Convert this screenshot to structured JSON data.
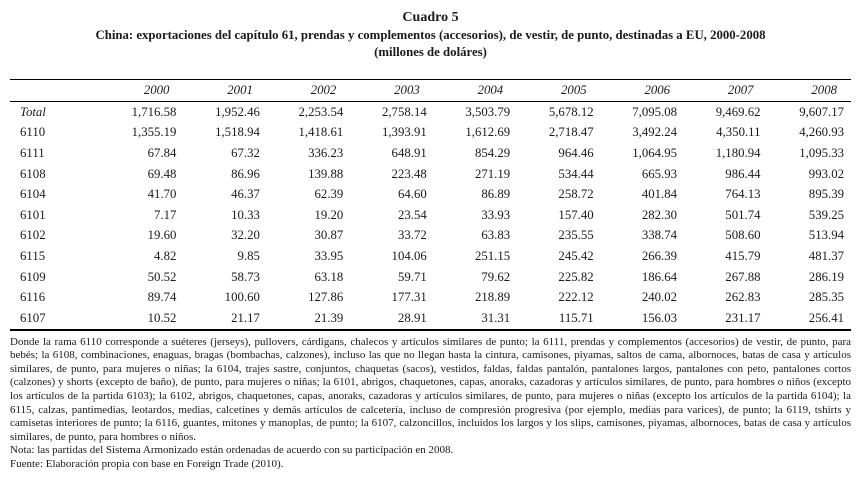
{
  "title": {
    "label": "Cuadro 5",
    "subtitle": "China: exportaciones del capítulo 61, prendas y complementos (accesorios), de vestir, de punto, destinadas a EU, 2000-2008",
    "units": "(millones de doláres)"
  },
  "table": {
    "columns": [
      "2000",
      "2001",
      "2002",
      "2003",
      "2004",
      "2005",
      "2006",
      "2007",
      "2008"
    ],
    "rows": [
      {
        "label": "Total",
        "italic": true,
        "values": [
          "1,716.58",
          "1,952.46",
          "2,253.54",
          "2,758.14",
          "3,503.79",
          "5,678.12",
          "7,095.08",
          "9,469.62",
          "9,607.17"
        ]
      },
      {
        "label": "6110",
        "italic": false,
        "values": [
          "1,355.19",
          "1,518.94",
          "1,418.61",
          "1,393.91",
          "1,612.69",
          "2,718.47",
          "3,492.24",
          "4,350.11",
          "4,260.93"
        ]
      },
      {
        "label": "6111",
        "italic": false,
        "values": [
          "67.84",
          "67.32",
          "336.23",
          "648.91",
          "854.29",
          "964.46",
          "1,064.95",
          "1,180.94",
          "1,095.33"
        ]
      },
      {
        "label": "6108",
        "italic": false,
        "values": [
          "69.48",
          "86.96",
          "139.88",
          "223.48",
          "271.19",
          "534.44",
          "665.93",
          "986.44",
          "993.02"
        ]
      },
      {
        "label": "6104",
        "italic": false,
        "values": [
          "41.70",
          "46.37",
          "62.39",
          "64.60",
          "86.89",
          "258.72",
          "401.84",
          "764.13",
          "895.39"
        ]
      },
      {
        "label": "6101",
        "italic": false,
        "values": [
          "7.17",
          "10.33",
          "19.20",
          "23.54",
          "33.93",
          "157.40",
          "282.30",
          "501.74",
          "539.25"
        ]
      },
      {
        "label": "6102",
        "italic": false,
        "values": [
          "19.60",
          "32.20",
          "30.87",
          "33.72",
          "63.83",
          "235.55",
          "338.74",
          "508.60",
          "513.94"
        ]
      },
      {
        "label": "6115",
        "italic": false,
        "values": [
          "4.82",
          "9.85",
          "33.95",
          "104.06",
          "251.15",
          "245.42",
          "266.39",
          "415.79",
          "481.37"
        ]
      },
      {
        "label": "6109",
        "italic": false,
        "values": [
          "50.52",
          "58.73",
          "63.18",
          "59.71",
          "79.62",
          "225.82",
          "186.64",
          "267.88",
          "286.19"
        ]
      },
      {
        "label": "6116",
        "italic": false,
        "values": [
          "89.74",
          "100.60",
          "127.86",
          "177.31",
          "218.89",
          "222.12",
          "240.02",
          "262.83",
          "285.35"
        ]
      },
      {
        "label": "6107",
        "italic": false,
        "values": [
          "10.52",
          "21.17",
          "21.39",
          "28.91",
          "31.31",
          "115.71",
          "156.03",
          "231.17",
          "256.41"
        ]
      }
    ]
  },
  "notes": {
    "description": "Donde la rama 6110 corresponde a suéteres (jerseys), pullovers, cárdigans, chalecos y artículos similares de punto; la 6111, prendas y complementos (accesorios) de vestir, de punto, para bebés; la 6108, combinaciones, enaguas, bragas (bombachas, calzones), incluso las que no llegan hasta la cintura, camisones, piyamas, saltos de cama, albornoces, batas de casa y artículos similares, de punto, para mujeres o niñas; la 6104, trajes sastre, conjuntos, chaquetas (sacos), vestidos, faldas, faldas pantalón, pantalones largos, pantalones con peto, pantalones cortos (calzones) y shorts (excepto de baño), de punto, para mujeres o niñas; la 6101, abrigos, chaquetones, capas, anoraks, cazadoras y artículos similares, de punto, para hombres o niños (excepto los artículos de la partida 6103); la 6102, abrigos, chaquetones, capas, anoraks, cazadoras y artículos similares, de punto, para mujeres o niñas (excepto los artículos de la partida 6104); la 6115, calzas, pantimedias, leotardos, medias, calcetines y demás artículos de calcetería, incluso de compresión progresiva (por ejemplo, medias para varices), de punto; la 6119, tshirts y camisetas interiores de punto; la 6116, guantes, mitones y manoplas, de punto; la 6107, calzoncillos, incluidos los largos y los slips, camisones, piyamas, albornoces, batas de casa y artículos similares, de punto, para hombres o niños.",
    "nota": "Nota: las partidas del Sistema Armonizado están ordenadas de acuerdo con su participación en 2008.",
    "fuente": "Fuente: Elaboración propia con base en Foreign Trade (2010)."
  }
}
